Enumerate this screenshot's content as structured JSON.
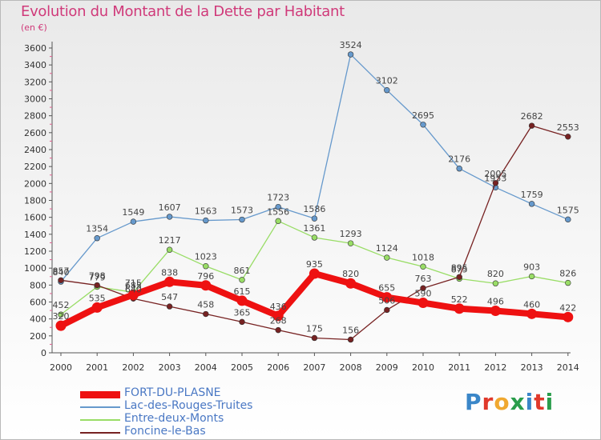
{
  "title": "Evolution du Montant de la Dette par Habitant",
  "subtitle": "(en €)",
  "logo": {
    "text": "Proxiti",
    "colors": [
      "#3a86c8",
      "#e0392b",
      "#f0a830",
      "#2a9d4b",
      "#3a86c8",
      "#e0392b",
      "#2a9d4b"
    ]
  },
  "chart_data": {
    "type": "line",
    "title": "Evolution du Montant de la Dette par Habitant",
    "ylabel": "(en €)",
    "x": [
      "2000",
      "2001",
      "2002",
      "2003",
      "2004",
      "2005",
      "2006",
      "2007",
      "2008",
      "2009",
      "2010",
      "2011",
      "2012",
      "2013",
      "2014"
    ],
    "ylim": [
      0,
      3600
    ],
    "yticks": [
      0,
      200,
      400,
      600,
      800,
      1000,
      1200,
      1400,
      1600,
      1800,
      2000,
      2200,
      2400,
      2600,
      2800,
      3000,
      3200,
      3400,
      3600
    ],
    "grid": false,
    "legend_position": "bottom-left",
    "series": [
      {
        "name": "FORT-DU-PLASNE",
        "color": "#ee1111",
        "values": [
          320,
          535,
          685,
          838,
          796,
          615,
          436,
          935,
          820,
          655,
          590,
          522,
          496,
          460,
          422
        ],
        "labels": [
          "320",
          "535",
          "685",
          "838",
          "796",
          "615",
          "436",
          "935",
          "820",
          "655",
          "590",
          "522",
          "496",
          "460",
          "422"
        ]
      },
      {
        "name": "Lac-des-Rouges-Truites",
        "color": "#6699cc",
        "values": [
          840,
          1354,
          1549,
          1607,
          1563,
          1573,
          1723,
          1586,
          3524,
          3102,
          2695,
          2176,
          1953,
          1759,
          1575
        ],
        "labels": [
          "840",
          "1354",
          "1549",
          "1607",
          "1563",
          "1573",
          "1723",
          "1586",
          "3524",
          "3102",
          "2695",
          "2176",
          "1953",
          "1759",
          "1575"
        ]
      },
      {
        "name": "Entre-deux-Monts",
        "color": "#99dd66",
        "values": [
          452,
          779,
          715,
          1217,
          1023,
          861,
          1556,
          1361,
          1293,
          1124,
          1018,
          875,
          820,
          903,
          826
        ],
        "labels": [
          "452",
          "779",
          "715",
          "1217",
          "1023",
          "861",
          "1556",
          "1361",
          "1293",
          "1124",
          "1018",
          "875",
          "820",
          "903",
          "826"
        ]
      },
      {
        "name": "Foncine-le-Bas",
        "color": "#772222",
        "values": [
          857,
          798,
          640,
          547,
          458,
          365,
          268,
          175,
          156,
          506,
          763,
          895,
          2005,
          2682,
          2553
        ],
        "labels": [
          "857",
          "798",
          "640",
          "547",
          "458",
          "365",
          "268",
          "175",
          "156",
          "506",
          "763",
          "895",
          "2005",
          "2682",
          "2553"
        ]
      }
    ]
  }
}
